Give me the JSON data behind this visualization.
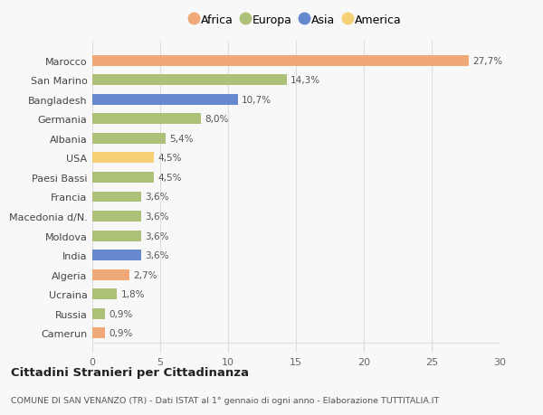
{
  "categories": [
    "Camerun",
    "Russia",
    "Ucraina",
    "Algeria",
    "India",
    "Moldova",
    "Macedonia d/N.",
    "Francia",
    "Paesi Bassi",
    "USA",
    "Albania",
    "Germania",
    "Bangladesh",
    "San Marino",
    "Marocco"
  ],
  "values": [
    0.9,
    0.9,
    1.8,
    2.7,
    3.6,
    3.6,
    3.6,
    3.6,
    4.5,
    4.5,
    5.4,
    8.0,
    10.7,
    14.3,
    27.7
  ],
  "colors": [
    "#f0a878",
    "#adc178",
    "#adc178",
    "#f0a878",
    "#6688cc",
    "#adc178",
    "#adc178",
    "#adc178",
    "#adc178",
    "#f5d077",
    "#adc178",
    "#adc178",
    "#6688cc",
    "#adc178",
    "#f0a878"
  ],
  "label_texts": [
    "0,9%",
    "0,9%",
    "1,8%",
    "2,7%",
    "3,6%",
    "3,6%",
    "3,6%",
    "3,6%",
    "4,5%",
    "4,5%",
    "5,4%",
    "8,0%",
    "10,7%",
    "14,3%",
    "27,7%"
  ],
  "legend": [
    {
      "label": "Africa",
      "color": "#f0a878"
    },
    {
      "label": "Europa",
      "color": "#adc178"
    },
    {
      "label": "Asia",
      "color": "#6688cc"
    },
    {
      "label": "America",
      "color": "#f5d077"
    }
  ],
  "xlim": [
    0,
    30
  ],
  "xticks": [
    0,
    5,
    10,
    15,
    20,
    25,
    30
  ],
  "title": "Cittadini Stranieri per Cittadinanza",
  "subtitle": "COMUNE DI SAN VENANZO (TR) - Dati ISTAT al 1° gennaio di ogni anno - Elaborazione TUTTITALIA.IT",
  "bg_color": "#f8f8f8",
  "grid_color": "#dddddd",
  "bar_height": 0.55
}
